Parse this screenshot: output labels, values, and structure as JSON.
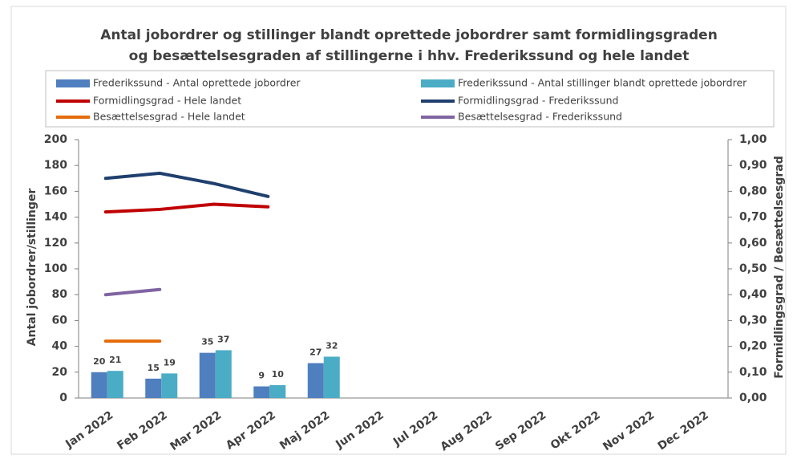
{
  "chart_data": {
    "type": "bar_line",
    "title": [
      "Antal jobordrer og stillinger blandt oprettede jobordrer samt formidlingsgraden",
      "og besættelsesgraden af stillingerne i hhv. Frederikssund og hele landet"
    ],
    "ylabel": "Antal jobordrer/stillinger",
    "y2label": "Formidlingsgrad / Besættelsesgrad",
    "categories": [
      "Jan 2022",
      "Feb 2022",
      "Mar 2022",
      "Apr 2022",
      "Maj 2022",
      "Jun 2022",
      "Jul 2022",
      "Aug 2022",
      "Sep 2022",
      "Okt 2022",
      "Nov 2022",
      "Dec 2022"
    ],
    "series": [
      {
        "name": "Frederikssund - Antal oprettede jobordrer",
        "type": "bar",
        "color": "#4f7fbe",
        "values": [
          20,
          15,
          35,
          9,
          27,
          null,
          null,
          null,
          null,
          null,
          null,
          null
        ]
      },
      {
        "name": "Frederikssund - Antal stillinger blandt oprettede jobordrer",
        "type": "bar",
        "color": "#4bacc6",
        "values": [
          21,
          19,
          37,
          10,
          32,
          null,
          null,
          null,
          null,
          null,
          null,
          null
        ]
      },
      {
        "name": "Formidlingsgrad - Hele landet",
        "type": "line",
        "axis": "y2",
        "color": "#c00000",
        "values": [
          0.72,
          0.73,
          0.75,
          0.74,
          null,
          null,
          null,
          null,
          null,
          null,
          null,
          null
        ]
      },
      {
        "name": "Formidlingsgrad - Frederikssund",
        "type": "line",
        "axis": "y2",
        "color": "#1f3f6e",
        "values": [
          0.85,
          0.87,
          0.83,
          0.78,
          null,
          null,
          null,
          null,
          null,
          null,
          null,
          null
        ]
      },
      {
        "name": "Besættelsesgrad - Hele landet",
        "type": "line",
        "axis": "y2",
        "color": "#e46c0a",
        "values": [
          0.22,
          0.22,
          null,
          null,
          null,
          null,
          null,
          null,
          null,
          null,
          null,
          null
        ]
      },
      {
        "name": "Besættelsesgrad - Frederikssund",
        "type": "line",
        "axis": "y2",
        "color": "#8064a2",
        "values": [
          0.4,
          0.42,
          null,
          null,
          null,
          null,
          null,
          null,
          null,
          null,
          null,
          null
        ]
      }
    ],
    "ylim": [
      0,
      200
    ],
    "yticks": [
      0,
      20,
      40,
      60,
      80,
      100,
      120,
      140,
      160,
      180,
      200
    ],
    "y2lim": [
      0,
      1
    ],
    "y2ticks": [
      {
        "value": 0,
        "label": "0,00"
      },
      {
        "value": 0.1,
        "label": "0,10"
      },
      {
        "value": 0.2,
        "label": "0,20"
      },
      {
        "value": 0.3,
        "label": "0,30"
      },
      {
        "value": 0.4,
        "label": "0,40"
      },
      {
        "value": 0.5,
        "label": "0,50"
      },
      {
        "value": 0.6,
        "label": "0,60"
      },
      {
        "value": 0.7,
        "label": "0,70"
      },
      {
        "value": 0.8,
        "label": "0,80"
      },
      {
        "value": 0.9,
        "label": "0,90"
      },
      {
        "value": 1,
        "label": "1,00"
      }
    ],
    "grid": false,
    "legend": "top"
  }
}
